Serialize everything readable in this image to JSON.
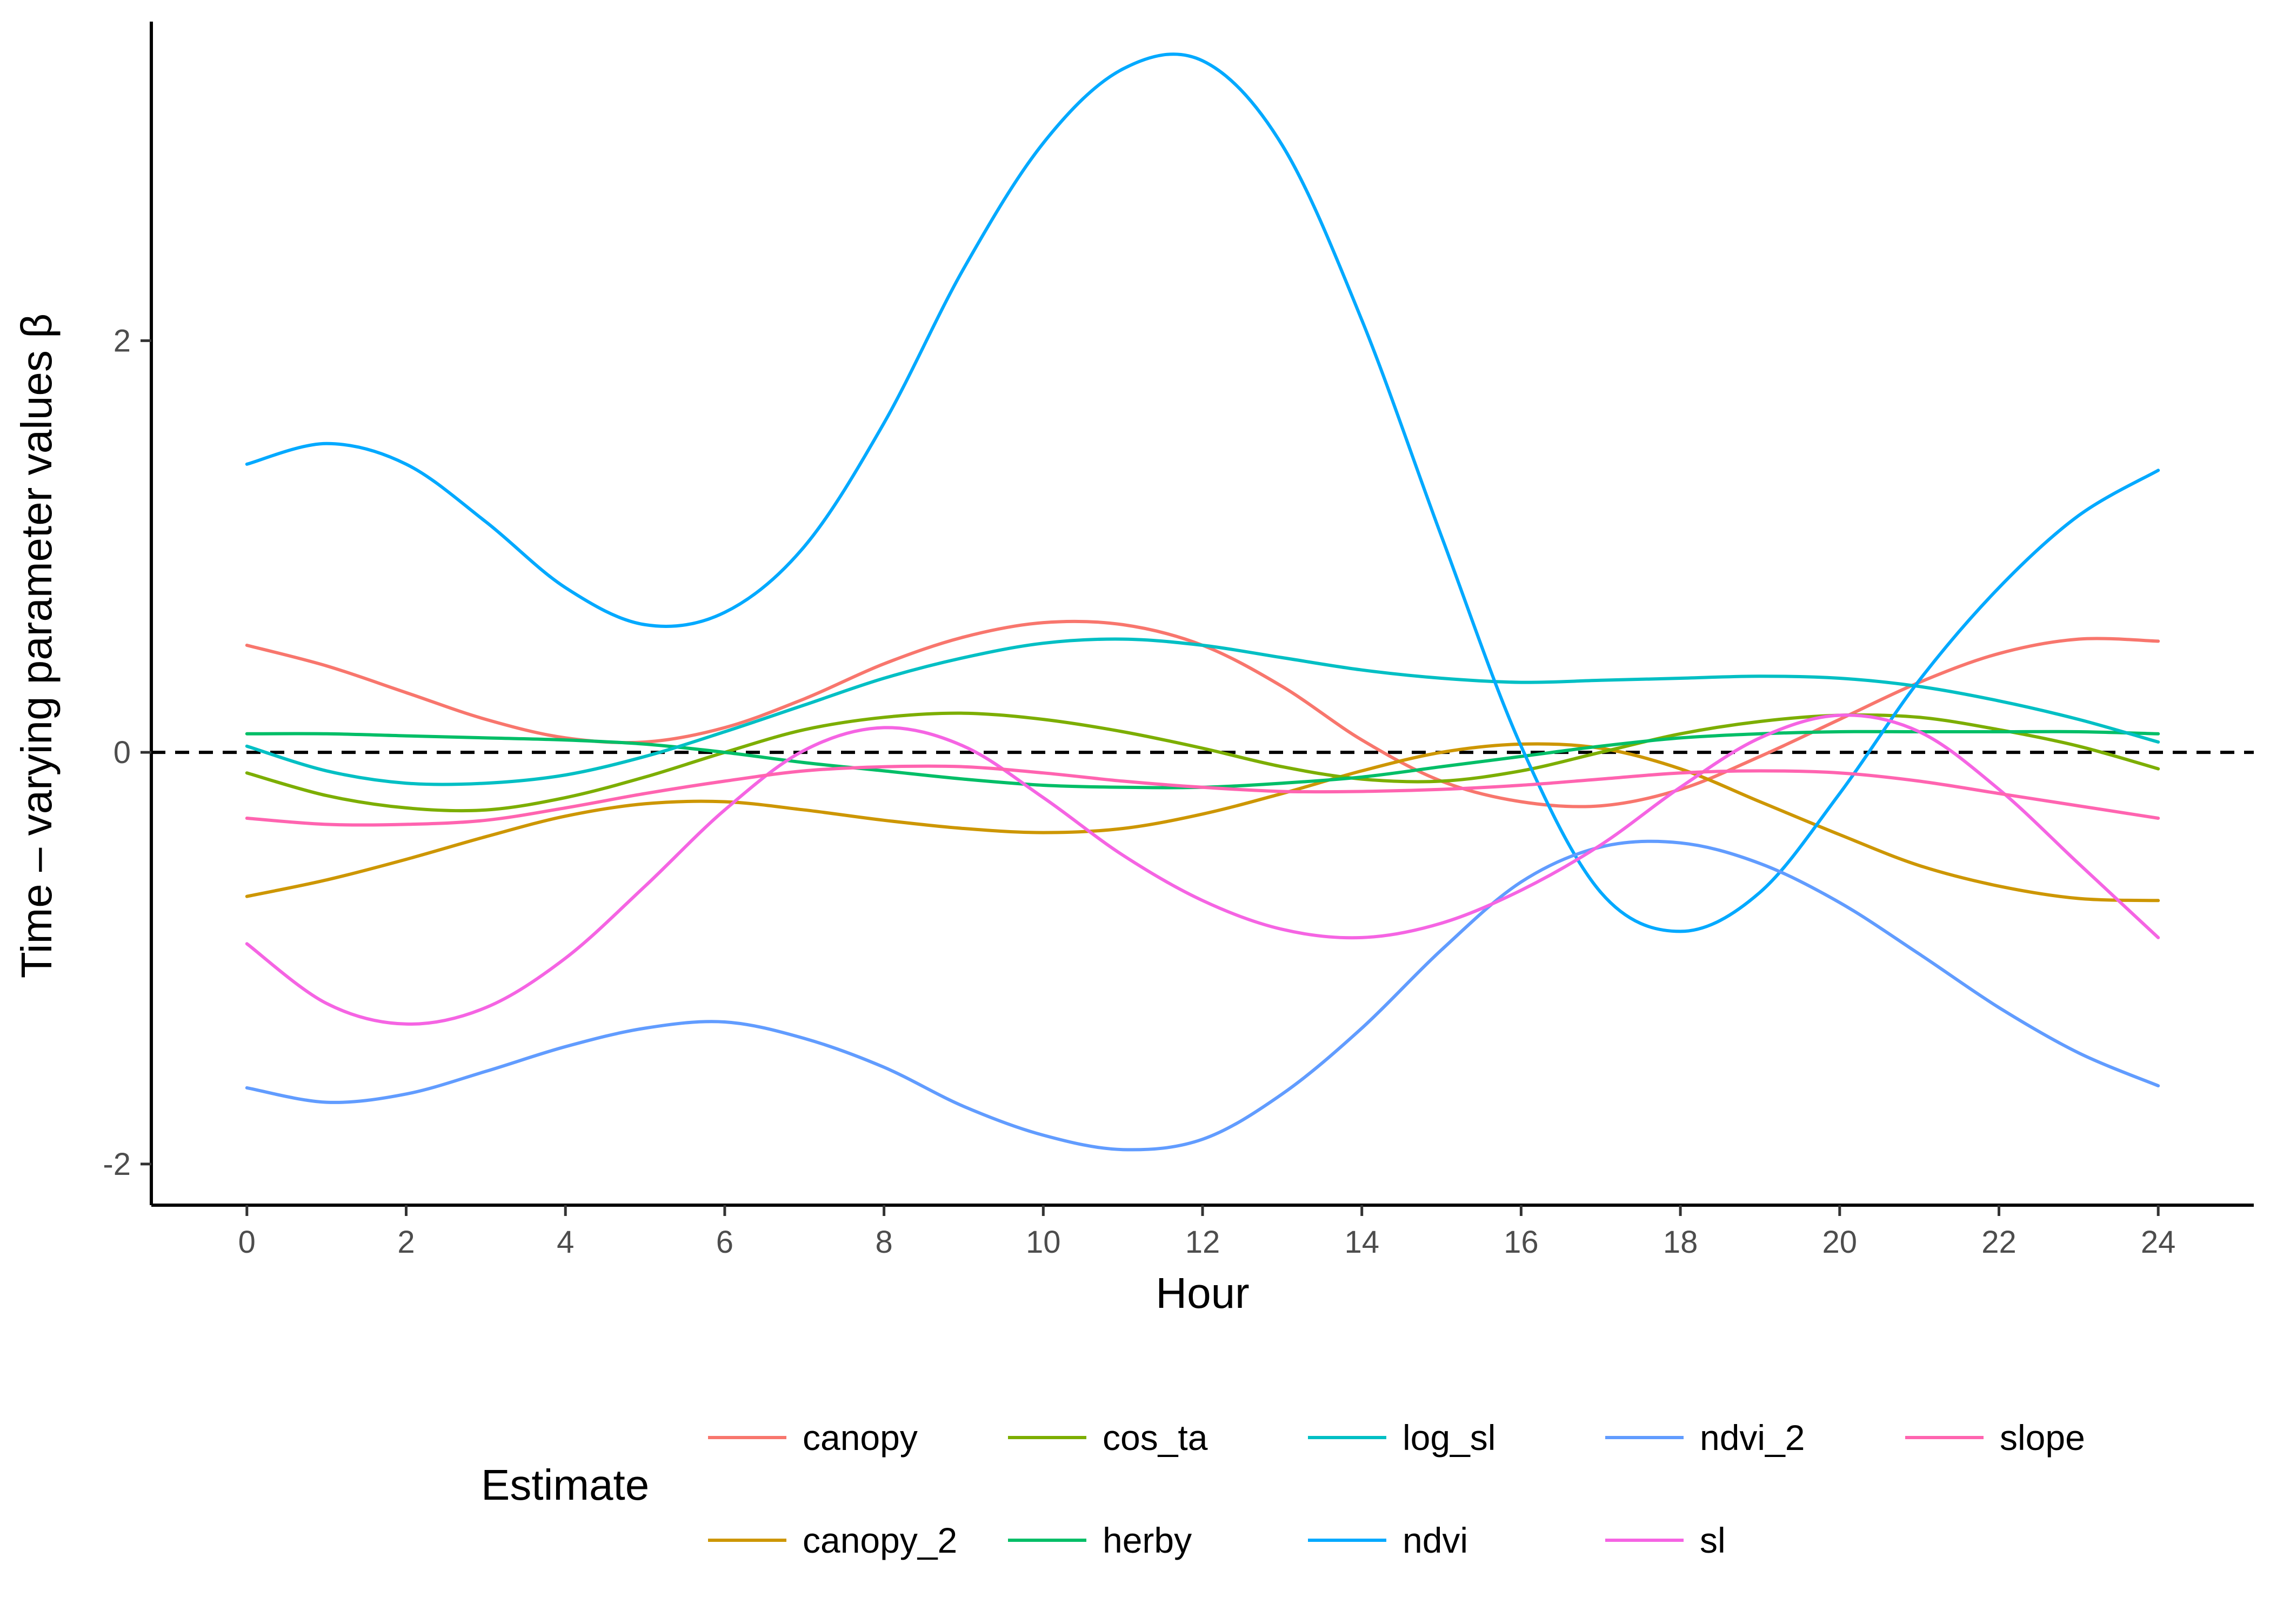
{
  "chart_data": {
    "type": "line",
    "title": "",
    "xlabel": "Hour",
    "ylabel": "Time – varying parameter values β",
    "xlim": [
      -1.2,
      25.2
    ],
    "ylim": [
      -2.2,
      3.55
    ],
    "x_ticks": [
      0,
      2,
      4,
      6,
      8,
      10,
      12,
      14,
      16,
      18,
      20,
      22,
      24
    ],
    "y_ticks": [
      -2,
      0,
      2
    ],
    "grid": false,
    "reference_line": {
      "y": 0,
      "style": "dashed",
      "color": "#000000"
    },
    "legend": {
      "title": "Estimate",
      "placement": "bottom",
      "columns": 5
    },
    "x": [
      0,
      1,
      2,
      3,
      4,
      5,
      6,
      7,
      8,
      9,
      10,
      11,
      12,
      13,
      14,
      15,
      16,
      17,
      18,
      19,
      20,
      21,
      22,
      23,
      24
    ],
    "series": [
      {
        "name": "canopy",
        "color": "#F8766D",
        "values": [
          0.52,
          0.42,
          0.29,
          0.16,
          0.07,
          0.05,
          0.12,
          0.26,
          0.43,
          0.56,
          0.63,
          0.62,
          0.52,
          0.32,
          0.06,
          -0.14,
          -0.24,
          -0.26,
          -0.18,
          -0.02,
          0.16,
          0.34,
          0.48,
          0.55,
          0.54
        ]
      },
      {
        "name": "canopy_2",
        "color": "#CD9600",
        "values": [
          -0.7,
          -0.62,
          -0.52,
          -0.41,
          -0.31,
          -0.25,
          -0.24,
          -0.28,
          -0.33,
          -0.37,
          -0.39,
          -0.37,
          -0.3,
          -0.2,
          -0.09,
          0.0,
          0.04,
          0.02,
          -0.08,
          -0.24,
          -0.4,
          -0.55,
          -0.65,
          -0.71,
          -0.72
        ]
      },
      {
        "name": "cos_ta",
        "color": "#7CAE00",
        "values": [
          -0.1,
          -0.21,
          -0.27,
          -0.28,
          -0.22,
          -0.12,
          0.0,
          0.11,
          0.17,
          0.19,
          0.16,
          0.1,
          0.02,
          -0.07,
          -0.13,
          -0.14,
          -0.09,
          0.0,
          0.09,
          0.15,
          0.18,
          0.17,
          0.11,
          0.03,
          -0.08
        ]
      },
      {
        "name": "herby",
        "color": "#00BE67",
        "values": [
          0.09,
          0.09,
          0.08,
          0.07,
          0.06,
          0.04,
          0.0,
          -0.05,
          -0.09,
          -0.13,
          -0.16,
          -0.17,
          -0.17,
          -0.15,
          -0.12,
          -0.07,
          -0.02,
          0.03,
          0.07,
          0.09,
          0.1,
          0.1,
          0.1,
          0.1,
          0.09
        ]
      },
      {
        "name": "log_sl",
        "color": "#00BFC4",
        "values": [
          0.03,
          -0.09,
          -0.15,
          -0.15,
          -0.11,
          -0.02,
          0.1,
          0.23,
          0.36,
          0.46,
          0.53,
          0.55,
          0.52,
          0.46,
          0.4,
          0.36,
          0.34,
          0.35,
          0.36,
          0.37,
          0.36,
          0.32,
          0.25,
          0.16,
          0.05
        ]
      },
      {
        "name": "ndvi",
        "color": "#00A9FF",
        "values": [
          1.4,
          1.5,
          1.4,
          1.12,
          0.8,
          0.62,
          0.68,
          1.0,
          1.6,
          2.35,
          2.96,
          3.32,
          3.36,
          2.95,
          2.1,
          1.05,
          0.03,
          -0.68,
          -0.87,
          -0.68,
          -0.2,
          0.35,
          0.8,
          1.15,
          1.37
        ]
      },
      {
        "name": "ndvi_2",
        "color": "#619CFF",
        "values": [
          -1.63,
          -1.7,
          -1.66,
          -1.55,
          -1.43,
          -1.34,
          -1.31,
          -1.39,
          -1.53,
          -1.72,
          -1.86,
          -1.93,
          -1.88,
          -1.66,
          -1.34,
          -0.96,
          -0.63,
          -0.46,
          -0.44,
          -0.54,
          -0.73,
          -0.98,
          -1.24,
          -1.46,
          -1.62
        ]
      },
      {
        "name": "sl",
        "color": "#F564E3",
        "values": [
          -0.93,
          -1.22,
          -1.32,
          -1.24,
          -1.0,
          -0.65,
          -0.28,
          0.01,
          0.12,
          0.03,
          -0.22,
          -0.5,
          -0.72,
          -0.86,
          -0.9,
          -0.83,
          -0.67,
          -0.45,
          -0.17,
          0.07,
          0.18,
          0.1,
          -0.18,
          -0.54,
          -0.9
        ]
      },
      {
        "name": "slope",
        "color": "#FF64B0",
        "values": [
          -0.32,
          -0.35,
          -0.35,
          -0.33,
          -0.27,
          -0.2,
          -0.14,
          -0.09,
          -0.07,
          -0.07,
          -0.1,
          -0.14,
          -0.17,
          -0.19,
          -0.19,
          -0.18,
          -0.16,
          -0.13,
          -0.1,
          -0.09,
          -0.1,
          -0.14,
          -0.2,
          -0.26,
          -0.32
        ]
      }
    ]
  }
}
